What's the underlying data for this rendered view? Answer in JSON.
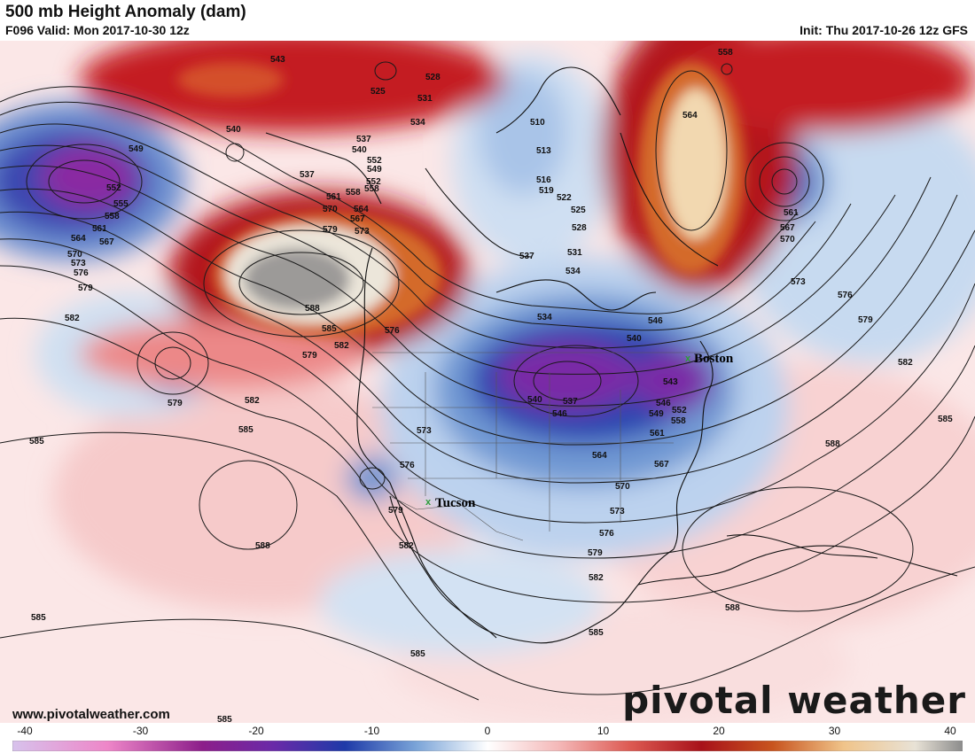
{
  "header": {
    "title": "500 mb Height Anomaly (dam)",
    "valid": "F096 Valid: Mon 2017-10-30 12z",
    "init": "Init: Thu 2017-10-26 12z GFS"
  },
  "footer": {
    "website": "www.pivotalweather.com",
    "logo": "pivotal weather"
  },
  "colorbar": {
    "min": -40,
    "max": 40,
    "tick_labels": [
      "-40",
      "-30",
      "-20",
      "-10",
      "0",
      "10",
      "20",
      "30",
      "40"
    ],
    "stops": [
      {
        "value": -40,
        "color": "#d7c2ec"
      },
      {
        "value": -32,
        "color": "#ee86c8"
      },
      {
        "value": -24,
        "color": "#8c1e8a"
      },
      {
        "value": -18,
        "color": "#6a2aa8"
      },
      {
        "value": -12,
        "color": "#1e3aa8"
      },
      {
        "value": -6,
        "color": "#7aa4d8"
      },
      {
        "value": 0,
        "color": "#ffffff"
      },
      {
        "value": 6,
        "color": "#f4b8b8"
      },
      {
        "value": 12,
        "color": "#dd5a52"
      },
      {
        "value": 18,
        "color": "#a8121a"
      },
      {
        "value": 24,
        "color": "#c8541e"
      },
      {
        "value": 30,
        "color": "#f0c48a"
      },
      {
        "value": 36,
        "color": "#e8e2d6"
      },
      {
        "value": 40,
        "color": "#8c8c8c"
      }
    ]
  },
  "cities": [
    {
      "name": "Boston"
    },
    {
      "name": "Tucson"
    }
  ],
  "contour_labels": [
    "543",
    "525",
    "528",
    "531",
    "534",
    "537",
    "540",
    "549",
    "552",
    "555",
    "558",
    "561",
    "564",
    "567",
    "570",
    "573",
    "576",
    "579",
    "582",
    "585",
    "588",
    "510",
    "513",
    "516",
    "519",
    "522",
    "546"
  ],
  "map_colors": {
    "ocean_base": "#fbe9e9",
    "positive_light": "#f4c2c2",
    "positive_mid": "#e25a5a",
    "positive_strong": "#b3121c",
    "positive_orange": "#d46a2a",
    "positive_peak": "#ece6da",
    "positive_gray": "#9c9a98",
    "negative_light": "#c9dbf0",
    "negative_mid": "#6d97d2",
    "negative_strong": "#1f3fae",
    "negative_peak": "#7a2aa6",
    "contour": "#1a1a1a",
    "coast": "#111111",
    "marker": "#2e9e3a"
  }
}
